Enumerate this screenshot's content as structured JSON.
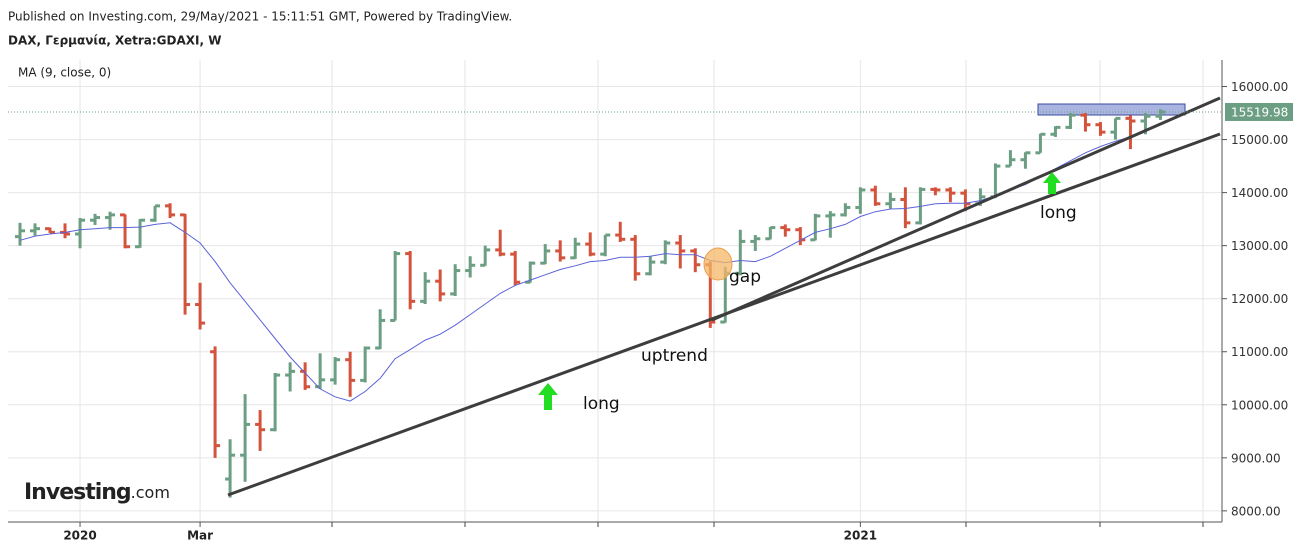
{
  "chart_data": {
    "type": "ohlc",
    "title": "Published on Investing.com, 29/May/2021 - 15:11:51 GMT, Powered by TradingView.",
    "subtitle": "DAX, Γερμανία, Xetra:GDAXI, W",
    "logo": {
      "brand": "Investing",
      "suffix": ".com"
    },
    "annotations": [
      "long",
      "uptrend",
      "gap",
      "long"
    ],
    "up_color": "#6b9e82",
    "down_color": "#d4533c",
    "open": [
      13170,
      13280,
      13320,
      13250,
      13220,
      13480,
      13530,
      13580,
      12980,
      13480,
      13750,
      13580,
      11890,
      11000,
      8600,
      9050,
      9630,
      9530,
      10560,
      10630,
      10340,
      10470,
      10850,
      10460,
      11070,
      11590,
      12850,
      11950,
      12330,
      12090,
      12530,
      12630,
      12920,
      12840,
      12310,
      12670,
      12900,
      12770,
      13030,
      12840,
      13200,
      13120,
      12470,
      12690,
      13050,
      12900,
      12640,
      11560,
      12480,
      13080,
      13130,
      13340,
      13300,
      13110,
      13560,
      13580,
      13720,
      14050,
      13790,
      13870,
      13430,
      14060,
      14050,
      13990,
      13790,
      13920,
      14500,
      14620,
      14750,
      15100,
      15230,
      15460,
      15280,
      15140,
      15400,
      15350,
      15440
    ],
    "high": [
      13430,
      13420,
      13340,
      13420,
      13520,
      13600,
      13640,
      13590,
      13500,
      13750,
      13800,
      13600,
      12300,
      11100,
      9350,
      10200,
      9900,
      10600,
      10800,
      10800,
      10970,
      10900,
      11000,
      11100,
      11800,
      12900,
      12900,
      12500,
      12550,
      12650,
      12800,
      13000,
      13300,
      12900,
      12700,
      13030,
      13100,
      13150,
      13250,
      13200,
      13450,
      13200,
      12800,
      13100,
      13200,
      12950,
      12700,
      12600,
      13300,
      13200,
      13350,
      13400,
      13350,
      13600,
      13650,
      13800,
      14100,
      14130,
      14000,
      14100,
      14100,
      14100,
      14100,
      14060,
      14080,
      14550,
      14800,
      14760,
      15110,
      15250,
      15500,
      15500,
      15330,
      15400,
      15460,
      15500,
      15570
    ],
    "low": [
      13000,
      13190,
      13240,
      13140,
      12950,
      13390,
      13300,
      12950,
      12960,
      13450,
      13520,
      11700,
      11420,
      9000,
      8250,
      8550,
      9130,
      9500,
      10250,
      10280,
      10300,
      10380,
      10150,
      10420,
      11050,
      11590,
      11800,
      11900,
      11950,
      12050,
      12400,
      12620,
      12800,
      12250,
      12300,
      12650,
      12700,
      12750,
      12800,
      12800,
      13070,
      12340,
      12440,
      12650,
      12570,
      12500,
      11450,
      11550,
      12440,
      12900,
      13120,
      13170,
      13010,
      13100,
      13150,
      13550,
      13600,
      13750,
      13700,
      13330,
      13400,
      13950,
      13820,
      13650,
      13750,
      13900,
      14500,
      14450,
      14750,
      15050,
      15200,
      15150,
      15070,
      15000,
      14820,
      15100,
      15370
    ],
    "close": [
      13280,
      13320,
      13250,
      13220,
      13480,
      13530,
      13580,
      12980,
      13480,
      13750,
      13580,
      11890,
      11540,
      9230,
      9050,
      9630,
      9530,
      10560,
      10630,
      10340,
      10470,
      10850,
      10460,
      11070,
      11590,
      12850,
      11950,
      12330,
      12090,
      12530,
      12630,
      12920,
      12840,
      12310,
      12670,
      12900,
      12770,
      13030,
      12840,
      13200,
      13120,
      12470,
      12690,
      13050,
      12900,
      12640,
      11560,
      12480,
      13080,
      13130,
      13340,
      13300,
      13110,
      13560,
      13580,
      13720,
      14050,
      13790,
      13870,
      13430,
      14060,
      14050,
      13990,
      13790,
      13920,
      14500,
      14620,
      14750,
      15100,
      15230,
      15460,
      15280,
      15140,
      15400,
      15350,
      15440,
      15520
    ],
    "series": [
      {
        "name": "MA (9, close, 0)",
        "color": "#5b63d8",
        "values": [
          13100,
          13180,
          13220,
          13250,
          13300,
          13320,
          13340,
          13340,
          13350,
          13400,
          13430,
          13250,
          13050,
          12700,
          12300,
          11950,
          11600,
          11250,
          10900,
          10600,
          10300,
          10150,
          10070,
          10250,
          10500,
          10870,
          11040,
          11220,
          11330,
          11500,
          11700,
          11900,
          12100,
          12250,
          12350,
          12450,
          12550,
          12620,
          12700,
          12720,
          12780,
          12780,
          12800,
          12850,
          12830,
          12830,
          12720,
          12680,
          12720,
          12700,
          12800,
          12950,
          13100,
          13250,
          13320,
          13400,
          13550,
          13640,
          13690,
          13700,
          13740,
          13790,
          13800,
          13800,
          13850,
          13940,
          14050,
          14150,
          14300,
          14450,
          14600,
          14750,
          14870,
          14970,
          15050,
          15150,
          15300
        ]
      }
    ],
    "last_price": 15519.98,
    "xlim": [
      -0.8,
      80.1
    ],
    "xticks": [
      {
        "value": 4,
        "label": "2020"
      },
      {
        "value": 12,
        "label": "Mar"
      },
      {
        "value": 56,
        "label": "2021"
      }
    ],
    "ylim": [
      7790,
      16500
    ],
    "yticks": [
      {
        "value": 8000,
        "label": "8000.00"
      },
      {
        "value": 9000,
        "label": "9000.00"
      },
      {
        "value": 10000,
        "label": "10000.00"
      },
      {
        "value": 11000,
        "label": "11000.00"
      },
      {
        "value": 12000,
        "label": "12000.00"
      },
      {
        "value": 13000,
        "label": "13000.00"
      },
      {
        "value": 14000,
        "label": "14000.00"
      },
      {
        "value": 15000,
        "label": "15000.00"
      },
      {
        "value": 16000,
        "label": "16000.00"
      }
    ],
    "grid": true
  }
}
